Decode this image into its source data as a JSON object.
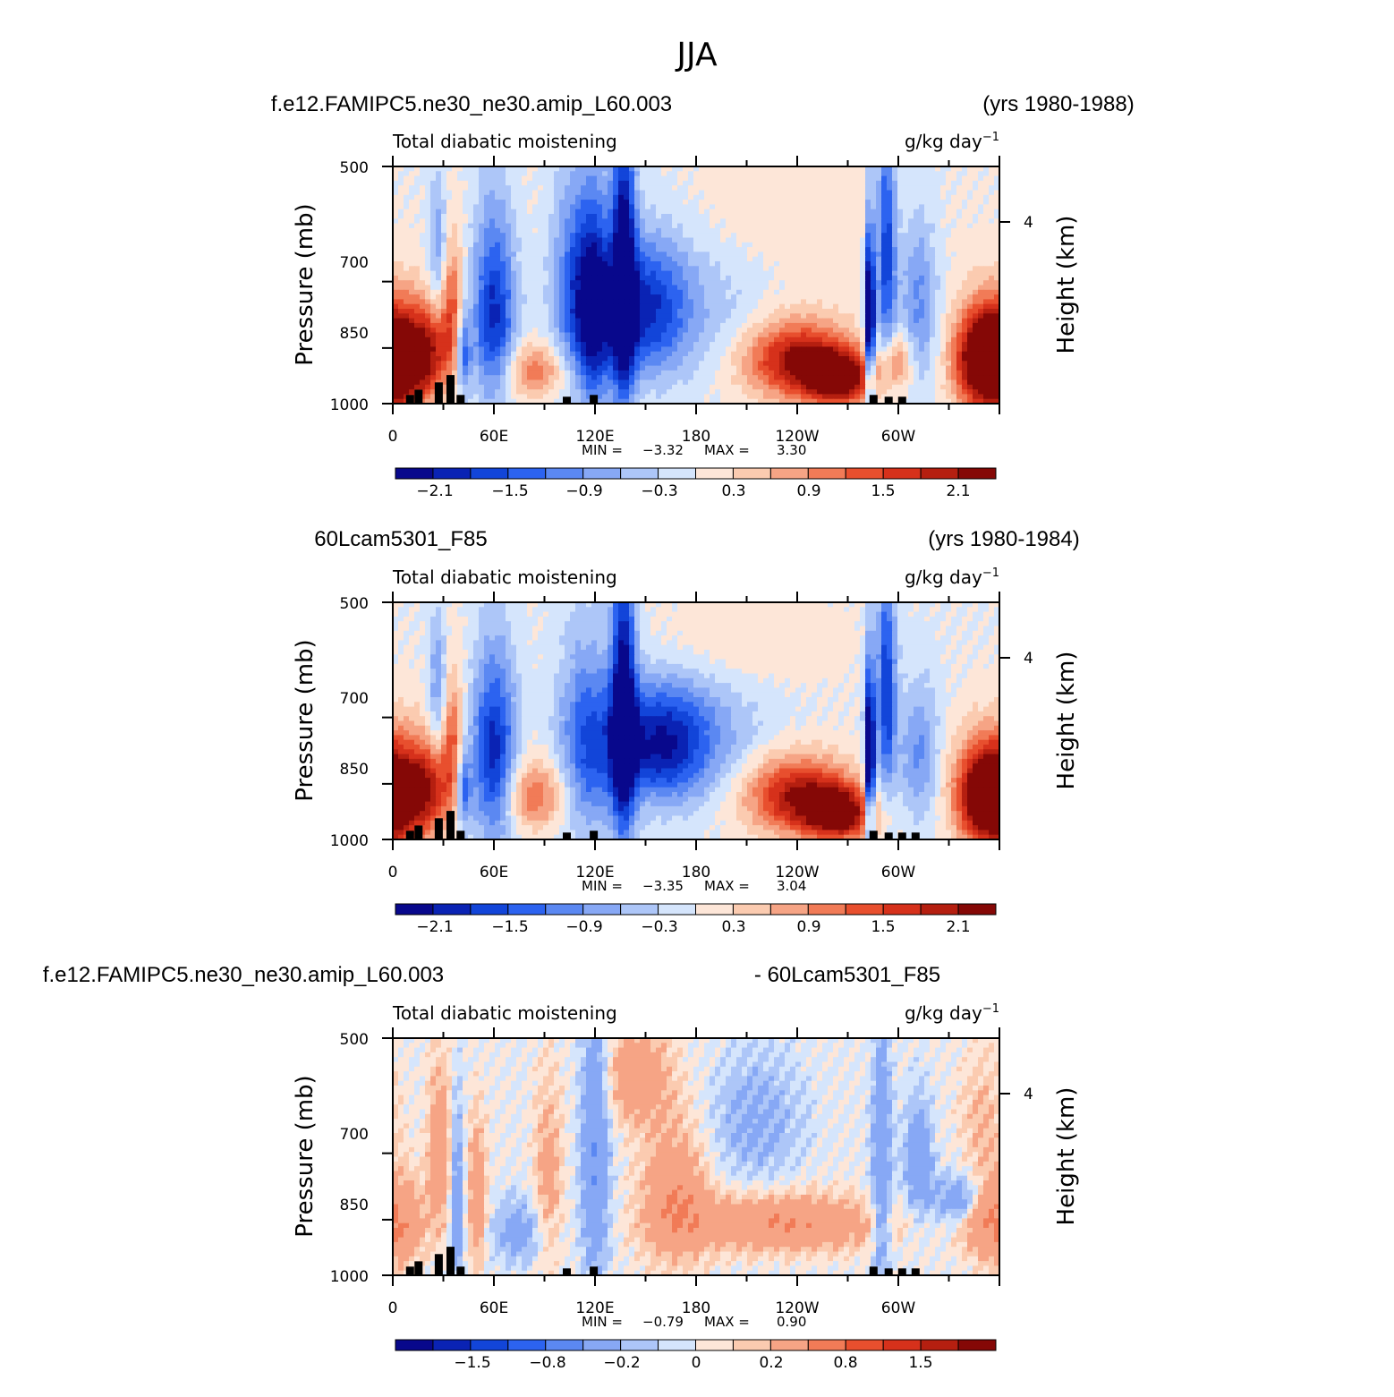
{
  "figure": {
    "title": "JJA"
  },
  "chart_data": [
    {
      "type": "heatmap",
      "case": "f.e12.FAMIPC5.ne30_ne30.amip_L60.003",
      "years": "(yrs 1980-1988)",
      "variable": "Total diabatic moistening",
      "units_base": "g/kg day",
      "units_exp": "−1",
      "ylabel": "Pressure (mb)",
      "ylabel_right": "Height (km)",
      "yticks": [
        "500",
        "700",
        "850",
        "1000"
      ],
      "yticks_right": [
        "4"
      ],
      "xticks": [
        "0",
        "60E",
        "120E",
        "180",
        "120W",
        "60W"
      ],
      "min_label": "MIN =",
      "min_value": "−3.32",
      "max_label": "MAX =",
      "max_value": "3.30",
      "colorbar_labels": [
        "−2.1",
        "−1.5",
        "−0.9",
        "−0.3",
        "0.3",
        "0.9",
        "1.5",
        "2.1"
      ],
      "features": [
        {
          "lon": 5,
          "p": 880,
          "value": 2.2,
          "sx": 12,
          "sy": 100
        },
        {
          "lon": 22,
          "p": 860,
          "value": 1.5,
          "sx": 8,
          "sy": 80
        },
        {
          "lon": 35,
          "p": 760,
          "value": 1.3,
          "sx": 5,
          "sy": 110
        },
        {
          "lon": 27,
          "p": 640,
          "value": -0.9,
          "sx": 4,
          "sy": 100
        },
        {
          "lon": 42,
          "p": 860,
          "value": -1.4,
          "sx": 3,
          "sy": 70
        },
        {
          "lon": 60,
          "p": 770,
          "value": -1.9,
          "sx": 9,
          "sy": 150
        },
        {
          "lon": 85,
          "p": 910,
          "value": 1.1,
          "sx": 14,
          "sy": 50
        },
        {
          "lon": 108,
          "p": 720,
          "value": -1.4,
          "sx": 10,
          "sy": 160
        },
        {
          "lon": 120,
          "p": 760,
          "value": -1.9,
          "sx": 7,
          "sy": 160
        },
        {
          "lon": 137,
          "p": 690,
          "value": -2.5,
          "sx": 5,
          "sy": 220
        },
        {
          "lon": 150,
          "p": 760,
          "value": -1.7,
          "sx": 18,
          "sy": 110
        },
        {
          "lon": 185,
          "p": 700,
          "value": -0.5,
          "sx": 35,
          "sy": 130
        },
        {
          "lon": 205,
          "p": 590,
          "value": 0.4,
          "sx": 60,
          "sy": 90
        },
        {
          "lon": 240,
          "p": 880,
          "value": 2.2,
          "sx": 22,
          "sy": 70
        },
        {
          "lon": 265,
          "p": 930,
          "value": 2.5,
          "sx": 14,
          "sy": 50
        },
        {
          "lon": 283,
          "p": 780,
          "value": -3.2,
          "sx": 2,
          "sy": 140
        },
        {
          "lon": 293,
          "p": 640,
          "value": -1.8,
          "sx": 4,
          "sy": 160
        },
        {
          "lon": 312,
          "p": 740,
          "value": -1.0,
          "sx": 8,
          "sy": 130
        },
        {
          "lon": 350,
          "p": 880,
          "value": 2.8,
          "sx": 12,
          "sy": 90
        },
        {
          "lon": 300,
          "p": 880,
          "value": 1.0,
          "sx": 6,
          "sy": 50
        }
      ]
    },
    {
      "type": "heatmap",
      "case": "60Lcam5301_F85",
      "years": "(yrs 1980-1984)",
      "variable": "Total diabatic moistening",
      "units_base": "g/kg day",
      "units_exp": "−1",
      "ylabel": "Pressure (mb)",
      "ylabel_right": "Height (km)",
      "yticks": [
        "500",
        "700",
        "850",
        "1000"
      ],
      "yticks_right": [
        "4"
      ],
      "xticks": [
        "0",
        "60E",
        "120E",
        "180",
        "120W",
        "60W"
      ],
      "min_label": "MIN =",
      "min_value": "−3.35",
      "max_label": "MAX =",
      "max_value": "3.04",
      "colorbar_labels": [
        "−2.1",
        "−1.5",
        "−0.9",
        "−0.3",
        "0.3",
        "0.9",
        "1.5",
        "2.1"
      ],
      "features": [
        {
          "lon": 5,
          "p": 880,
          "value": 2.0,
          "sx": 12,
          "sy": 100
        },
        {
          "lon": 22,
          "p": 860,
          "value": 1.4,
          "sx": 8,
          "sy": 80
        },
        {
          "lon": 35,
          "p": 760,
          "value": 1.3,
          "sx": 5,
          "sy": 110
        },
        {
          "lon": 27,
          "p": 650,
          "value": -1.0,
          "sx": 4,
          "sy": 100
        },
        {
          "lon": 42,
          "p": 860,
          "value": -1.4,
          "sx": 3,
          "sy": 70
        },
        {
          "lon": 60,
          "p": 780,
          "value": -2.0,
          "sx": 9,
          "sy": 150
        },
        {
          "lon": 85,
          "p": 880,
          "value": 1.2,
          "sx": 14,
          "sy": 60
        },
        {
          "lon": 115,
          "p": 760,
          "value": -1.3,
          "sx": 12,
          "sy": 160
        },
        {
          "lon": 137,
          "p": 690,
          "value": -2.4,
          "sx": 5,
          "sy": 220
        },
        {
          "lon": 158,
          "p": 760,
          "value": -1.9,
          "sx": 22,
          "sy": 90
        },
        {
          "lon": 185,
          "p": 700,
          "value": -0.5,
          "sx": 35,
          "sy": 130
        },
        {
          "lon": 195,
          "p": 570,
          "value": 0.5,
          "sx": 40,
          "sy": 60
        },
        {
          "lon": 240,
          "p": 880,
          "value": 2.1,
          "sx": 22,
          "sy": 70
        },
        {
          "lon": 265,
          "p": 930,
          "value": 2.3,
          "sx": 14,
          "sy": 50
        },
        {
          "lon": 283,
          "p": 790,
          "value": -3.2,
          "sx": 2,
          "sy": 140
        },
        {
          "lon": 293,
          "p": 650,
          "value": -1.8,
          "sx": 4,
          "sy": 160
        },
        {
          "lon": 312,
          "p": 780,
          "value": -1.0,
          "sx": 8,
          "sy": 110
        },
        {
          "lon": 350,
          "p": 880,
          "value": 2.6,
          "sx": 12,
          "sy": 90
        }
      ]
    },
    {
      "type": "heatmap",
      "case": "f.e12.FAMIPC5.ne30_ne30.amip_L60.003",
      "years": "- 60Lcam5301_F85",
      "variable": "Total diabatic moistening",
      "units_base": "g/kg day",
      "units_exp": "−1",
      "ylabel": "Pressure (mb)",
      "ylabel_right": "Height (km)",
      "yticks": [
        "500",
        "700",
        "850",
        "1000"
      ],
      "yticks_right": [
        "4"
      ],
      "xticks": [
        "0",
        "60E",
        "120E",
        "180",
        "120W",
        "60W"
      ],
      "min_label": "MIN =",
      "min_value": "−0.79",
      "max_label": "MAX =",
      "max_value": "0.90",
      "colorbar_labels": [
        "−1.5",
        "−0.8",
        "−0.2",
        "0",
        "0.2",
        "0.8",
        "1.5"
      ],
      "features": [
        {
          "lon": 5,
          "p": 860,
          "value": 0.4,
          "sx": 10,
          "sy": 80
        },
        {
          "lon": 28,
          "p": 700,
          "value": 0.4,
          "sx": 5,
          "sy": 120
        },
        {
          "lon": 38,
          "p": 800,
          "value": -0.4,
          "sx": 3,
          "sy": 150
        },
        {
          "lon": 50,
          "p": 800,
          "value": 0.4,
          "sx": 4,
          "sy": 120
        },
        {
          "lon": 75,
          "p": 880,
          "value": -0.3,
          "sx": 12,
          "sy": 60
        },
        {
          "lon": 92,
          "p": 760,
          "value": 0.3,
          "sx": 6,
          "sy": 140
        },
        {
          "lon": 120,
          "p": 700,
          "value": -0.5,
          "sx": 6,
          "sy": 200
        },
        {
          "lon": 145,
          "p": 560,
          "value": 0.35,
          "sx": 15,
          "sy": 60
        },
        {
          "lon": 168,
          "p": 800,
          "value": 0.45,
          "sx": 14,
          "sy": 110
        },
        {
          "lon": 232,
          "p": 860,
          "value": 0.5,
          "sx": 40,
          "sy": 50
        },
        {
          "lon": 215,
          "p": 640,
          "value": -0.25,
          "sx": 20,
          "sy": 90
        },
        {
          "lon": 290,
          "p": 740,
          "value": -0.45,
          "sx": 4,
          "sy": 200
        },
        {
          "lon": 312,
          "p": 720,
          "value": -0.4,
          "sx": 6,
          "sy": 90
        },
        {
          "lon": 336,
          "p": 800,
          "value": -0.4,
          "sx": 10,
          "sy": 40
        },
        {
          "lon": 350,
          "p": 860,
          "value": 0.35,
          "sx": 10,
          "sy": 60
        },
        {
          "lon": 350,
          "p": 640,
          "value": 0.2,
          "sx": 10,
          "sy": 90
        }
      ]
    }
  ],
  "colors": {
    "palette": [
      "#08088c",
      "#0a23b4",
      "#1245d9",
      "#2c63f0",
      "#5b88f2",
      "#87a8f5",
      "#adc6f8",
      "#d5e5fc",
      "#fde6d8",
      "#fbcbb0",
      "#f6a485",
      "#f17b57",
      "#e84f2e",
      "#d6311b",
      "#b51f10",
      "#850806"
    ],
    "topography": "#000000"
  }
}
